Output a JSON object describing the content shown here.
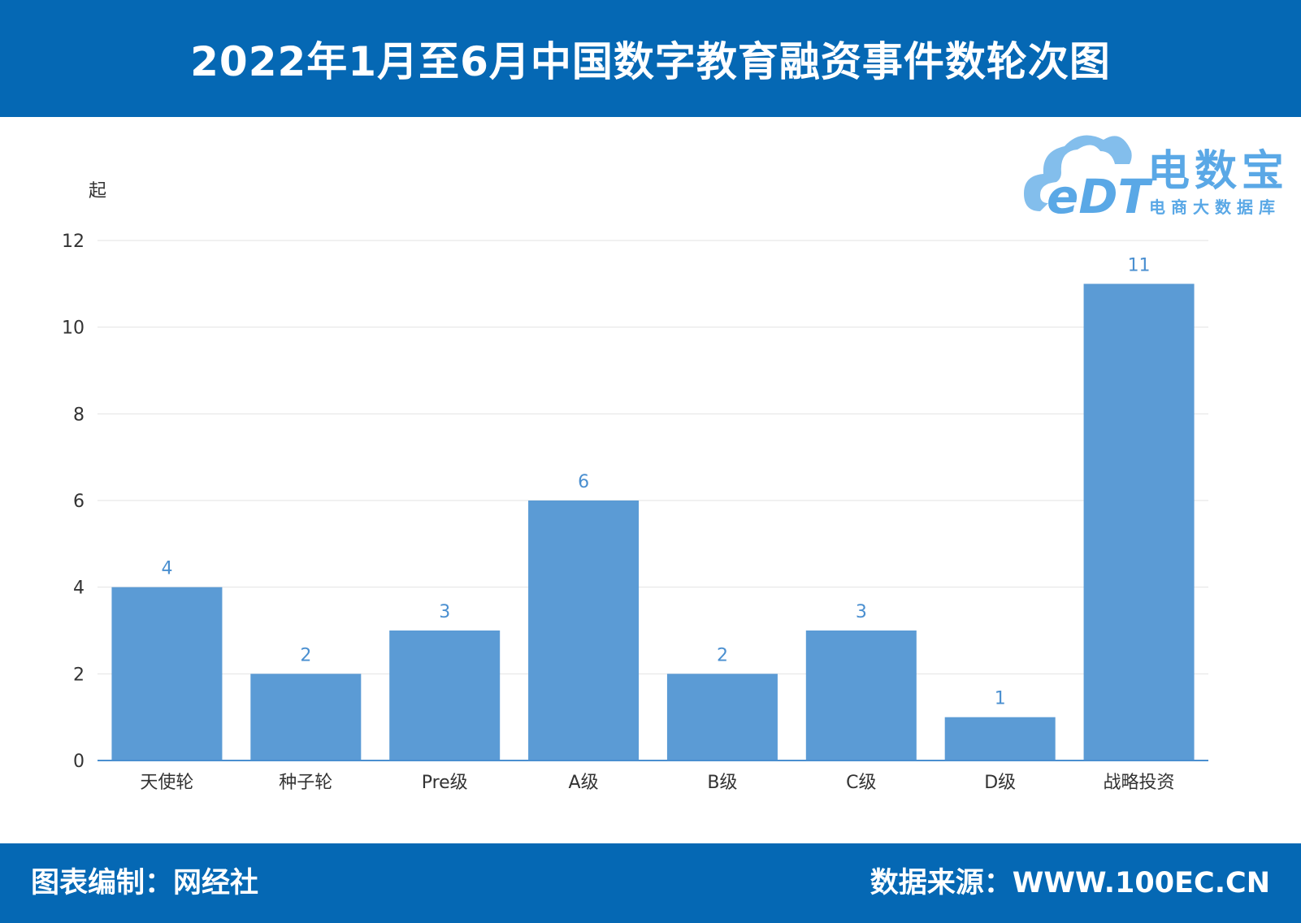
{
  "header": {
    "title": "2022年1月至6月中国数字教育融资事件数轮次图"
  },
  "footer": {
    "compiler": "图表编制：网经社",
    "source": "数据来源：WWW.100EC.CN"
  },
  "logo": {
    "mark": "eDT",
    "name": "电数宝",
    "tagline": "电商大数据库",
    "icon": "cloud-icon",
    "color": "#5aa8e6"
  },
  "colors": {
    "brand": "#0568b4",
    "bar": "#5b9bd5",
    "label": "#4a8fd0"
  },
  "chart_data": {
    "type": "bar",
    "unit_label": "起",
    "categories": [
      "天使轮",
      "种子轮",
      "Pre级",
      "A级",
      "B级",
      "C级",
      "D级",
      "战略投资"
    ],
    "values": [
      4,
      2,
      3,
      6,
      2,
      3,
      1,
      11
    ],
    "ylim": [
      0,
      12
    ],
    "yticks": [
      0,
      2,
      4,
      6,
      8,
      10,
      12
    ],
    "grid": true,
    "data_labels": true
  }
}
